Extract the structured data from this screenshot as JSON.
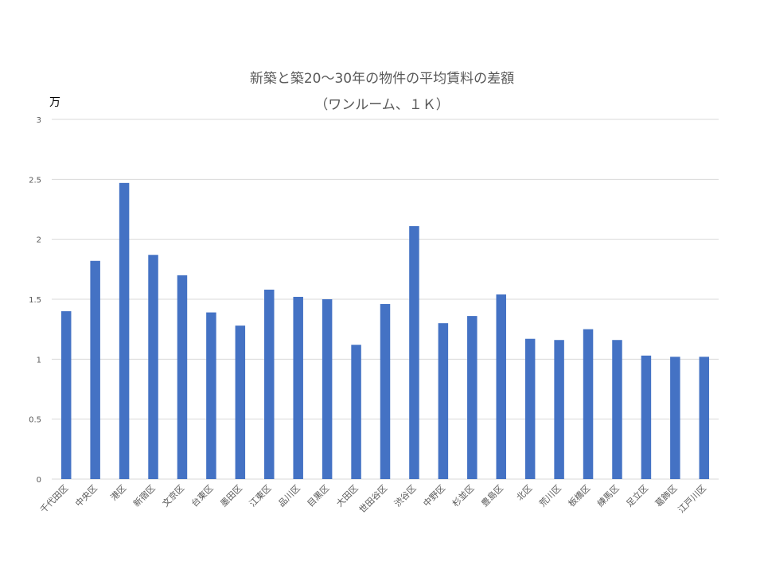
{
  "chart_data": {
    "type": "bar",
    "title": "新築と築20～30年の物件の平均賃料の差額",
    "subtitle": "（ワンルーム、１Ｋ）",
    "ylabel": "万",
    "xlabel": "",
    "ylim": [
      0,
      3
    ],
    "yticks": [
      "0",
      "0.5",
      "1",
      "1.5",
      "2",
      "2.5",
      "3"
    ],
    "grid": true,
    "legend": "none",
    "bar_color": "#4472C4",
    "categories": [
      "千代田区",
      "中央区",
      "港区",
      "新宿区",
      "文京区",
      "台東区",
      "墨田区",
      "江東区",
      "品川区",
      "目黒区",
      "大田区",
      "世田谷区",
      "渋谷区",
      "中野区",
      "杉並区",
      "豊島区",
      "北区",
      "荒川区",
      "板橋区",
      "練馬区",
      "足立区",
      "葛飾区",
      "江戸川区"
    ],
    "values": [
      1.4,
      1.82,
      2.47,
      1.87,
      1.7,
      1.39,
      1.28,
      1.58,
      1.52,
      1.5,
      1.12,
      1.46,
      2.11,
      1.3,
      1.36,
      1.54,
      1.17,
      1.16,
      1.25,
      1.16,
      1.03,
      1.02,
      1.02
    ]
  }
}
